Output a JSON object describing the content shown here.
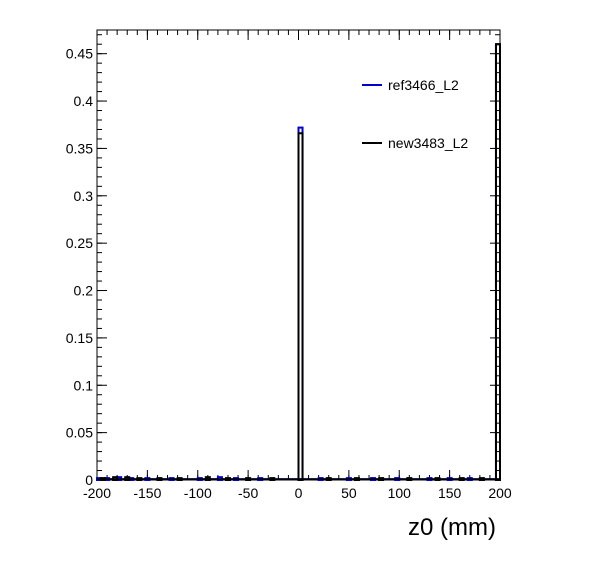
{
  "chart_data": {
    "type": "histogram",
    "title": "",
    "xlabel": "z0 (mm)",
    "ylabel": "",
    "xlim": [
      -200,
      200
    ],
    "ylim": [
      0,
      0.475
    ],
    "grid": false,
    "legend_position": "top-right",
    "x_ticks": [
      -200,
      -150,
      -100,
      -50,
      0,
      50,
      100,
      150,
      200
    ],
    "x_tick_labels": [
      "-200",
      "-150",
      "-100",
      "-50",
      "0",
      "50",
      "100",
      "150",
      "200"
    ],
    "y_ticks": [
      0,
      0.05,
      0.1,
      0.15,
      0.2,
      0.25,
      0.3,
      0.35,
      0.4,
      0.45
    ],
    "y_tick_labels": [
      "0",
      "0.05",
      "0.1",
      "0.15",
      "0.2",
      "0.25",
      "0.3",
      "0.35",
      "0.4",
      "0.45"
    ],
    "bin_width": 4,
    "series": [
      {
        "name": "ref3466_L2",
        "color": "#0000cc",
        "points": [
          {
            "x": -198,
            "y": 0.002
          },
          {
            "x": -190,
            "y": 0.002
          },
          {
            "x": -178,
            "y": 0.003
          },
          {
            "x": -166,
            "y": 0.002
          },
          {
            "x": -150,
            "y": 0.002
          },
          {
            "x": -126,
            "y": 0.002
          },
          {
            "x": -98,
            "y": 0.002
          },
          {
            "x": -78,
            "y": 0.003
          },
          {
            "x": -62,
            "y": 0.002
          },
          {
            "x": -38,
            "y": 0.002
          },
          {
            "x": 2,
            "y": 0.372
          },
          {
            "x": 22,
            "y": 0.002
          },
          {
            "x": 50,
            "y": 0.002
          },
          {
            "x": 74,
            "y": 0.002
          },
          {
            "x": 98,
            "y": 0.002
          },
          {
            "x": 130,
            "y": 0.002
          },
          {
            "x": 150,
            "y": 0.002
          },
          {
            "x": 170,
            "y": 0.002
          },
          {
            "x": 198,
            "y": 0.46
          }
        ]
      },
      {
        "name": "new3483_L2",
        "color": "#000000",
        "points": [
          {
            "x": -194,
            "y": 0.002
          },
          {
            "x": -182,
            "y": 0.003
          },
          {
            "x": -170,
            "y": 0.003
          },
          {
            "x": -158,
            "y": 0.002
          },
          {
            "x": -138,
            "y": 0.002
          },
          {
            "x": -118,
            "y": 0.002
          },
          {
            "x": -90,
            "y": 0.003
          },
          {
            "x": -70,
            "y": 0.002
          },
          {
            "x": -50,
            "y": 0.002
          },
          {
            "x": -26,
            "y": 0.002
          },
          {
            "x": 2,
            "y": 0.366
          },
          {
            "x": 30,
            "y": 0.002
          },
          {
            "x": 58,
            "y": 0.002
          },
          {
            "x": 82,
            "y": 0.002
          },
          {
            "x": 110,
            "y": 0.002
          },
          {
            "x": 138,
            "y": 0.002
          },
          {
            "x": 162,
            "y": 0.002
          },
          {
            "x": 182,
            "y": 0.002
          },
          {
            "x": 198,
            "y": 0.46
          }
        ]
      }
    ]
  }
}
